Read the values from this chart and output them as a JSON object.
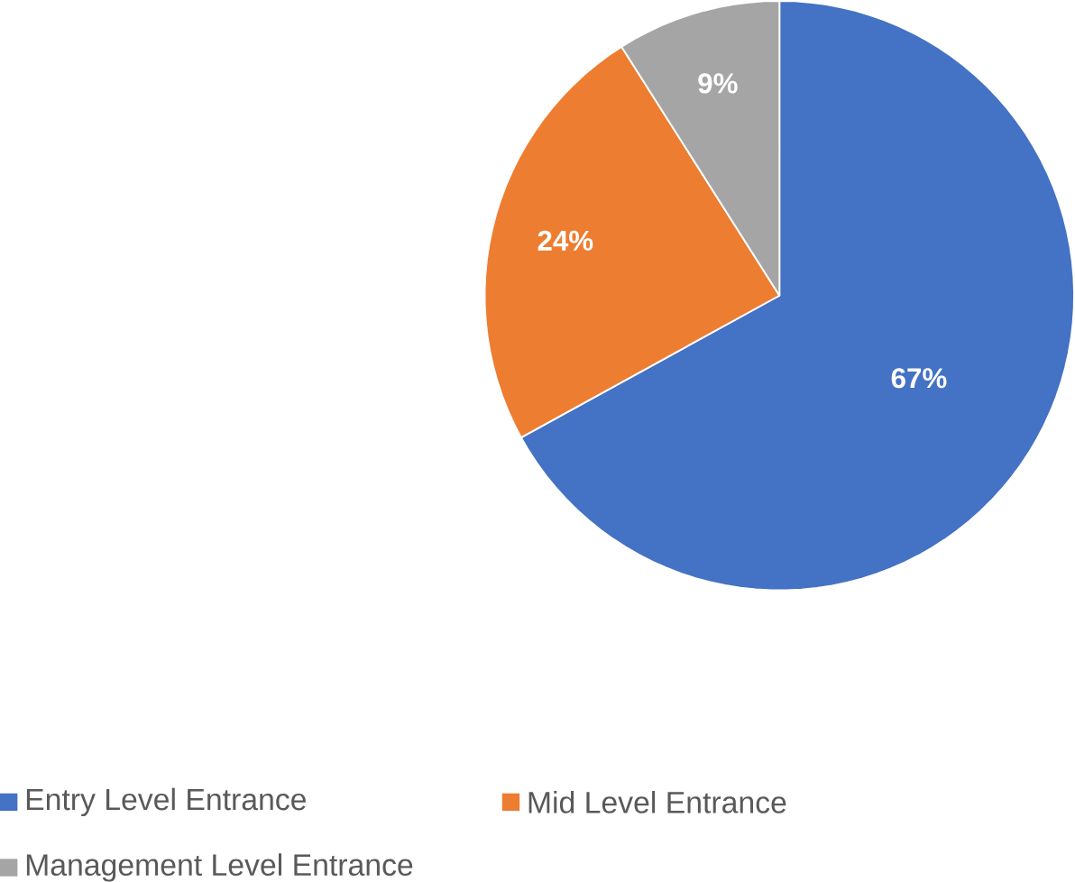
{
  "chart_data": {
    "type": "pie",
    "categories": [
      "Entry Level Entrance",
      "Mid Level Entrance",
      "Management Level Entrance"
    ],
    "values": [
      67,
      24,
      9
    ],
    "colors": [
      "#4472c4",
      "#ed7d31",
      "#a5a5a5"
    ],
    "value_labels": [
      "67%",
      "24%",
      "9%"
    ],
    "legend": "bottom"
  }
}
